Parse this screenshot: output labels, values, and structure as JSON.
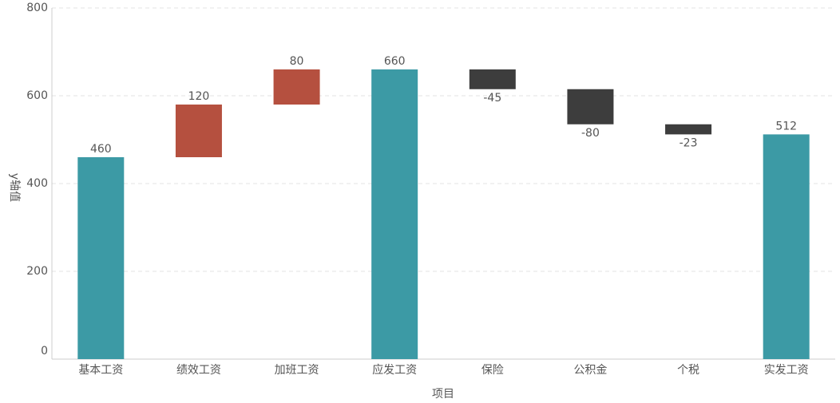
{
  "chart_data": {
    "type": "waterfall",
    "x_label": "项目",
    "y_label": "y轴值",
    "categories": [
      "基本工资",
      "绩效工资",
      "加班工资",
      "应发工资",
      "保险",
      "公积金",
      "个税",
      "实发工资"
    ],
    "values": [
      460,
      120,
      80,
      660,
      -45,
      -80,
      -23,
      512
    ],
    "measure": [
      "absolute",
      "relative",
      "relative",
      "absolute",
      "relative",
      "relative",
      "relative",
      "absolute"
    ],
    "total_color": "#3c9aa5",
    "increasing_color": "#b5503f",
    "decreasing_color": "#3d3d3d",
    "ylim": [
      0,
      800
    ],
    "yticks": [
      0,
      200,
      400,
      600,
      800
    ],
    "grid": true
  }
}
